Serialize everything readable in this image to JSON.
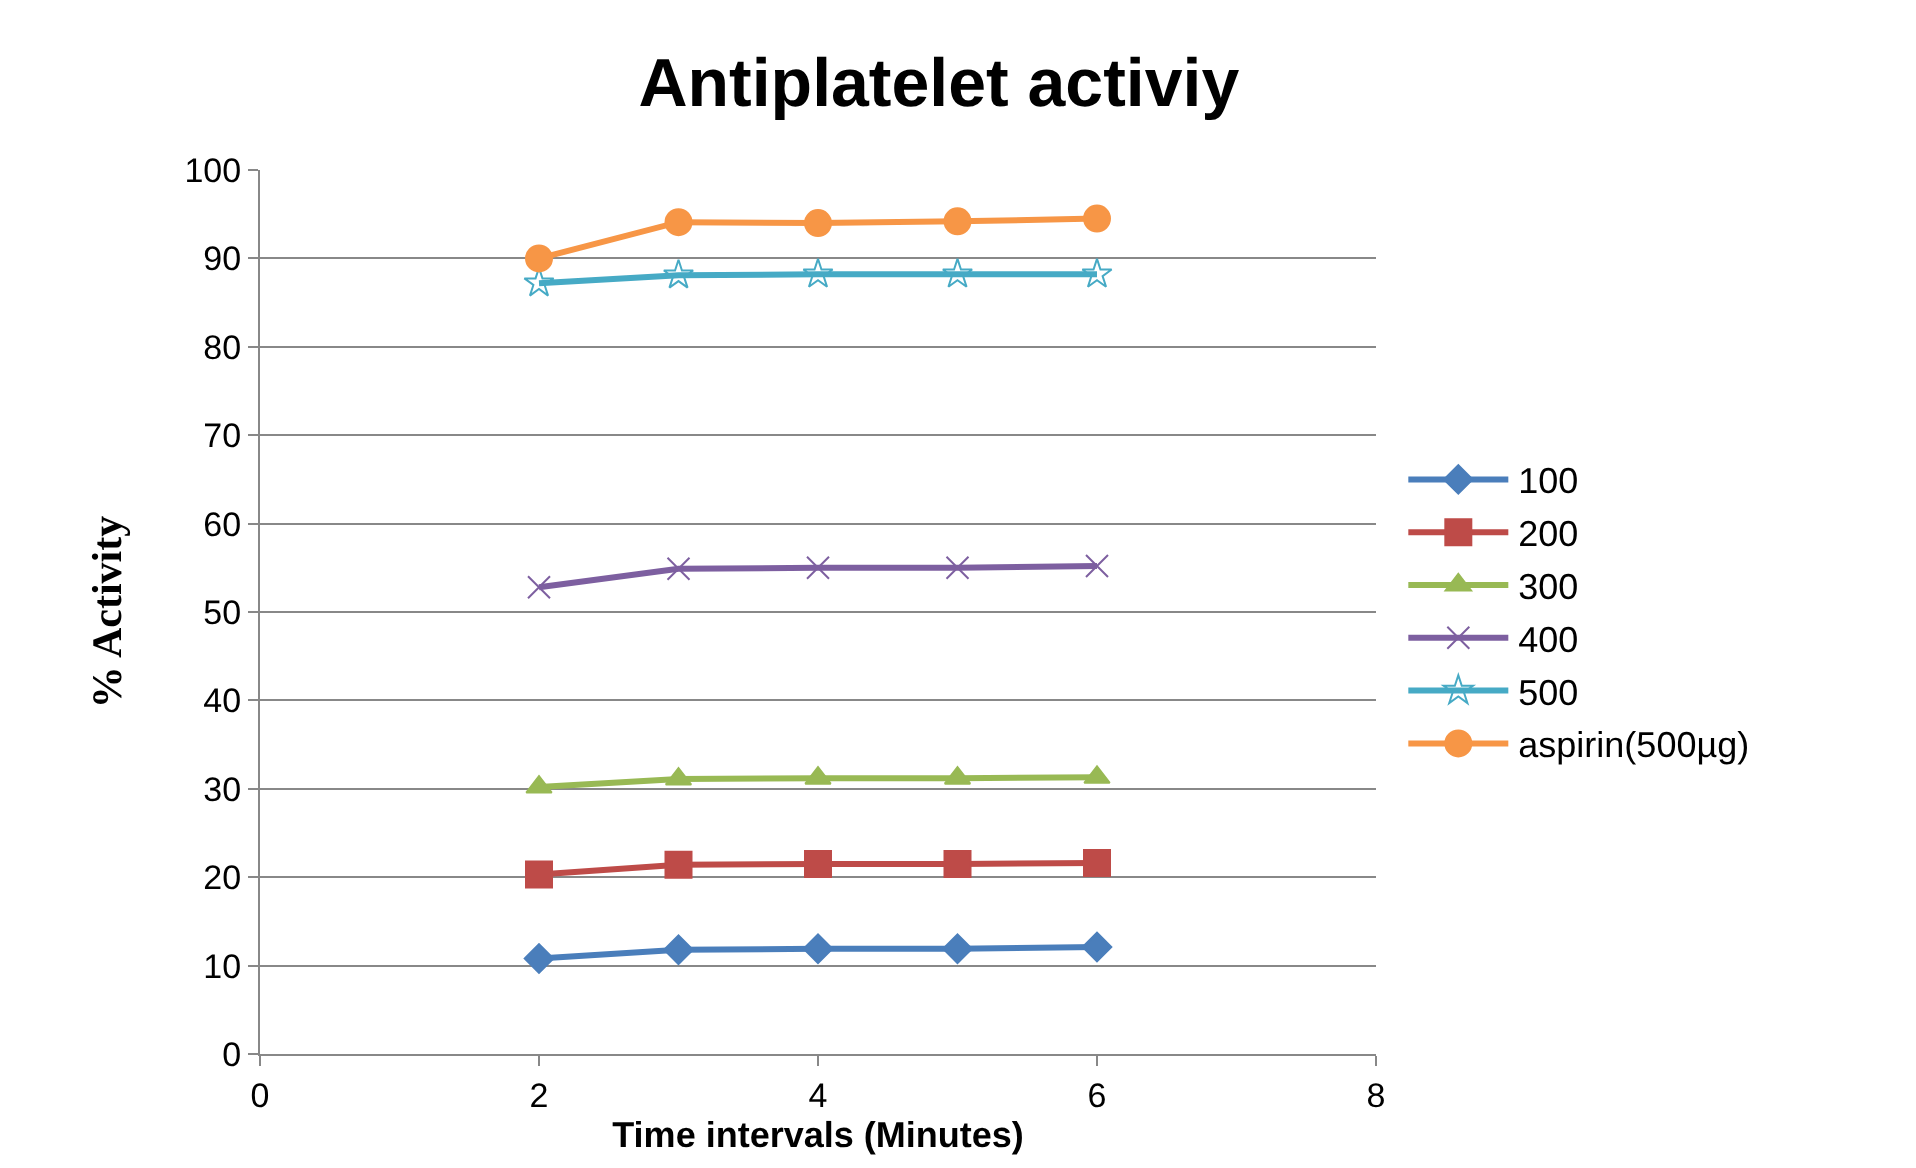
{
  "chart_data": {
    "type": "line",
    "title": "Antiplatelet activiy",
    "xlabel": "Time intervals (Minutes)",
    "ylabel": "% Activity",
    "x": [
      2,
      3,
      4,
      5,
      6
    ],
    "series": [
      {
        "name": "100",
        "color": "#4a7ebb",
        "marker": "diamond",
        "values": [
          10.8,
          11.8,
          11.9,
          11.9,
          12.1
        ]
      },
      {
        "name": "200",
        "color": "#be4b48",
        "marker": "square",
        "values": [
          20.3,
          21.4,
          21.5,
          21.5,
          21.6
        ]
      },
      {
        "name": "300",
        "color": "#98b954",
        "marker": "triangle",
        "values": [
          30.2,
          31.1,
          31.2,
          31.2,
          31.3
        ]
      },
      {
        "name": "400",
        "color": "#7d5fa0",
        "marker": "cross",
        "values": [
          52.8,
          54.9,
          55.0,
          55.0,
          55.2
        ]
      },
      {
        "name": "500",
        "color": "#46aac5",
        "marker": "star",
        "values": [
          87.2,
          88.1,
          88.2,
          88.2,
          88.2
        ]
      },
      {
        "name": "aspirin(500µg)",
        "color": "#f79646",
        "marker": "circle",
        "values": [
          90.0,
          94.1,
          94.0,
          94.2,
          94.5
        ]
      }
    ],
    "xlim": [
      0,
      8
    ],
    "xticks": [
      0,
      2,
      4,
      6,
      8
    ],
    "ylim": [
      0,
      100
    ],
    "yticks": [
      0,
      10,
      20,
      30,
      40,
      50,
      60,
      70,
      80,
      90,
      100
    ],
    "grid": "y",
    "legend": "right",
    "line_style": "solid"
  }
}
